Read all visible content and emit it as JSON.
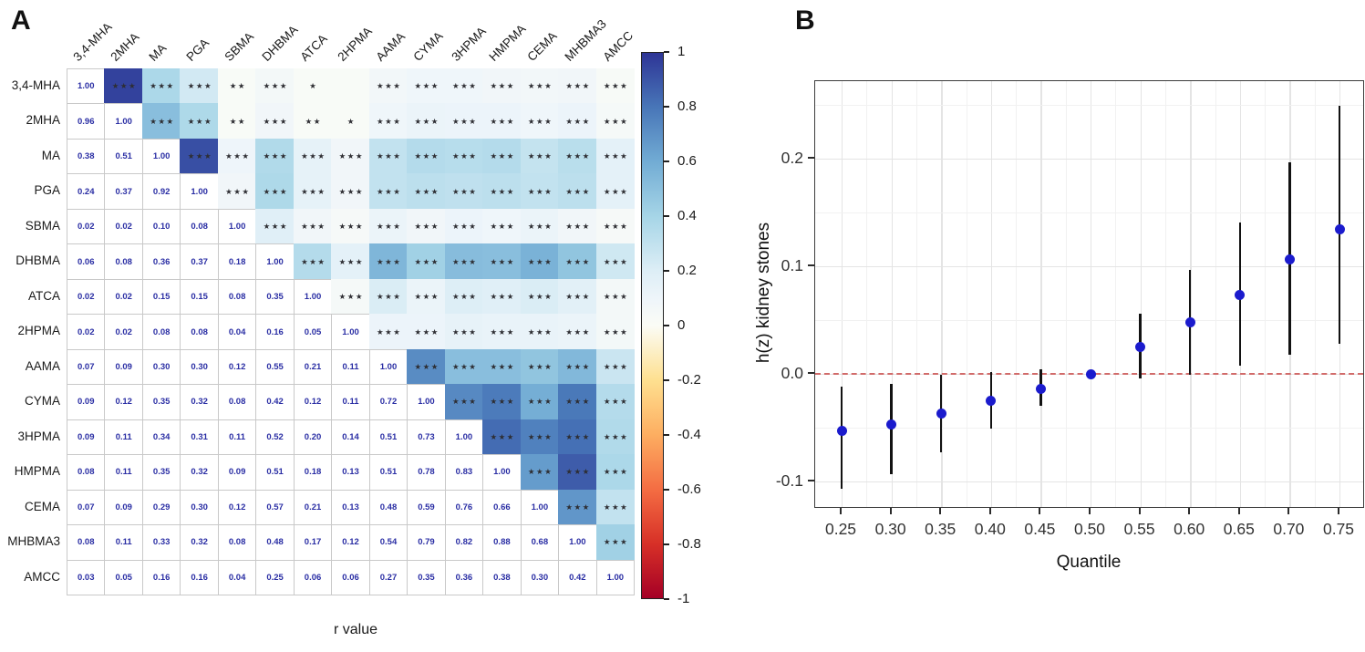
{
  "figure": {
    "panel_a_label": "A",
    "panel_b_label": "B"
  },
  "colors": {
    "matrix_value_text": "#2a2ea4",
    "star_text": "#2e2e33",
    "cell_border": "#c9c9c9",
    "point": "#1b1bcd",
    "error_bar": "#121212",
    "zero_line": "#d16b6a",
    "grid_major": "#e4e4e4",
    "grid_minor": "#f1f1f1"
  },
  "chart_data": [
    {
      "id": "A",
      "type": "heatmap",
      "xlabel": "r value",
      "variables": [
        "3,4-MHA",
        "2MHA",
        "MA",
        "PGA",
        "SBMA",
        "DHBMA",
        "ATCA",
        "2HPMA",
        "AAMA",
        "CYMA",
        "3HPMA",
        "HMPMA",
        "CEMA",
        "MHBMA3",
        "AMCC"
      ],
      "r_lower": [
        [
          1.0
        ],
        [
          0.96,
          1.0
        ],
        [
          0.38,
          0.51,
          1.0
        ],
        [
          0.24,
          0.37,
          0.92,
          1.0
        ],
        [
          0.02,
          0.02,
          0.1,
          0.08,
          1.0
        ],
        [
          0.06,
          0.08,
          0.36,
          0.37,
          0.18,
          1.0
        ],
        [
          0.02,
          0.02,
          0.15,
          0.15,
          0.08,
          0.35,
          1.0
        ],
        [
          0.02,
          0.02,
          0.08,
          0.08,
          0.04,
          0.16,
          0.05,
          1.0
        ],
        [
          0.07,
          0.09,
          0.3,
          0.3,
          0.12,
          0.55,
          0.21,
          0.11,
          1.0
        ],
        [
          0.09,
          0.12,
          0.35,
          0.32,
          0.08,
          0.42,
          0.12,
          0.11,
          0.72,
          1.0
        ],
        [
          0.09,
          0.11,
          0.34,
          0.31,
          0.11,
          0.52,
          0.2,
          0.14,
          0.51,
          0.73,
          1.0
        ],
        [
          0.08,
          0.11,
          0.35,
          0.32,
          0.09,
          0.51,
          0.18,
          0.13,
          0.51,
          0.78,
          0.83,
          1.0
        ],
        [
          0.07,
          0.09,
          0.29,
          0.3,
          0.12,
          0.57,
          0.21,
          0.13,
          0.48,
          0.59,
          0.76,
          0.66,
          1.0
        ],
        [
          0.08,
          0.11,
          0.33,
          0.32,
          0.08,
          0.48,
          0.17,
          0.12,
          0.54,
          0.79,
          0.82,
          0.88,
          0.68,
          1.0
        ],
        [
          0.03,
          0.05,
          0.16,
          0.16,
          0.04,
          0.25,
          0.06,
          0.06,
          0.27,
          0.35,
          0.36,
          0.38,
          0.3,
          0.42,
          1.0
        ]
      ],
      "stars_upper": [
        [
          "***",
          "***",
          "***",
          "**",
          "***",
          "*",
          "",
          "***",
          "***",
          "***",
          "***",
          "***",
          "***",
          "***"
        ],
        [
          "***",
          "***",
          "**",
          "***",
          "**",
          "*",
          "***",
          "***",
          "***",
          "***",
          "***",
          "***",
          "***"
        ],
        [
          "***",
          "***",
          "***",
          "***",
          "***",
          "***",
          "***",
          "***",
          "***",
          "***",
          "***",
          "***"
        ],
        [
          "***",
          "***",
          "***",
          "***",
          "***",
          "***",
          "***",
          "***",
          "***",
          "***",
          "***"
        ],
        [
          "***",
          "***",
          "***",
          "***",
          "***",
          "***",
          "***",
          "***",
          "***",
          "***"
        ],
        [
          "***",
          "***",
          "***",
          "***",
          "***",
          "***",
          "***",
          "***",
          "***"
        ],
        [
          "***",
          "***",
          "***",
          "***",
          "***",
          "***",
          "***",
          "***"
        ],
        [
          "***",
          "***",
          "***",
          "***",
          "***",
          "***",
          "***"
        ],
        [
          "***",
          "***",
          "***",
          "***",
          "***",
          "***"
        ],
        [
          "***",
          "***",
          "***",
          "***",
          "***"
        ],
        [
          "***",
          "***",
          "***",
          "***"
        ],
        [
          "***",
          "***",
          "***"
        ],
        [
          "***",
          "***"
        ],
        [
          "***"
        ]
      ],
      "colorbar_ticks": [
        "1",
        "0.8",
        "0.6",
        "0.4",
        "0.2",
        "0",
        "-0.2",
        "-0.4",
        "-0.6",
        "-0.8",
        "-1"
      ],
      "colorscale": [
        [
          -1.0,
          "#a50026"
        ],
        [
          -0.8,
          "#d73027"
        ],
        [
          -0.6,
          "#f46d43"
        ],
        [
          -0.4,
          "#fdae61"
        ],
        [
          -0.2,
          "#fee090"
        ],
        [
          0.0,
          "#fbfcf6"
        ],
        [
          0.1,
          "#eef5fa"
        ],
        [
          0.2,
          "#ddeef6"
        ],
        [
          0.4,
          "#a6d5e7"
        ],
        [
          0.6,
          "#72acd4"
        ],
        [
          0.8,
          "#4876b8"
        ],
        [
          1.0,
          "#2e3596"
        ]
      ]
    },
    {
      "id": "B",
      "type": "scatter",
      "xlabel": "Quantile",
      "ylabel": "h(z) kidney stones",
      "x_tick_labels": [
        "0.25",
        "0.30",
        "0.35",
        "0.40",
        "0.45",
        "0.50",
        "0.55",
        "0.60",
        "0.65",
        "0.70",
        "0.75"
      ],
      "y_tick_labels": [
        "0.2",
        "0.1",
        "0.0",
        "-0.1"
      ],
      "x": [
        0.25,
        0.3,
        0.35,
        0.4,
        0.45,
        0.5,
        0.55,
        0.6,
        0.65,
        0.7,
        0.75
      ],
      "y": [
        -0.053,
        -0.047,
        -0.037,
        -0.025,
        -0.014,
        0.0,
        0.025,
        0.048,
        0.073,
        0.106,
        0.134
      ],
      "ci_low": [
        -0.107,
        -0.093,
        -0.073,
        -0.051,
        -0.03,
        0.0,
        -0.004,
        -0.001,
        0.008,
        0.018,
        0.028
      ],
      "ci_high": [
        -0.012,
        -0.009,
        -0.001,
        0.002,
        0.004,
        0.0,
        0.056,
        0.097,
        0.141,
        0.197,
        0.249
      ],
      "reference_line": 0.0,
      "ylim": [
        -0.125,
        0.272
      ],
      "xlim": [
        0.2235,
        0.7765
      ],
      "y_major_step": 0.1,
      "y_minor_step": 0.05,
      "x_major_step": 0.05,
      "x_minor_step": 0.025,
      "grid": true
    }
  ]
}
